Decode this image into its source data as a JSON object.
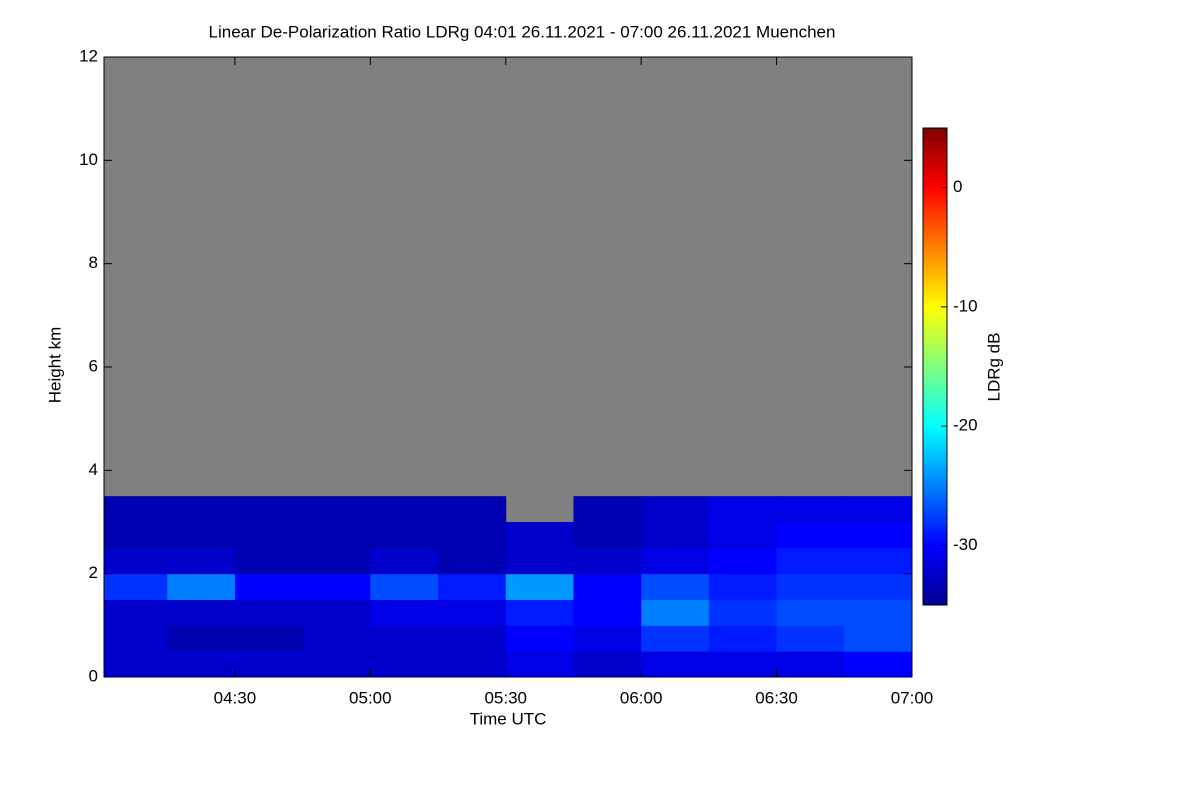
{
  "chart_data": {
    "type": "heatmap",
    "title": "Linear De-Polarization Ratio LDRg   04:01 26.11.2021 - 07:00 26.11.2021 Muenchen",
    "x_label": "Time UTC",
    "y_label": "Height km",
    "colorbar_label": "LDRg dB",
    "colormap": "jet",
    "missing_color": "#808080",
    "x_bins": [
      4.0167,
      4.25,
      4.5,
      4.75,
      5.0,
      5.25,
      5.5,
      5.75,
      6.0,
      6.25,
      6.5,
      6.75,
      7.0
    ],
    "y_bins": [
      0,
      0.5,
      1,
      1.5,
      2,
      2.5,
      3,
      3.5,
      4
    ],
    "z": [
      [
        -32,
        -32,
        -32,
        -32,
        -32,
        -32,
        -31,
        -32,
        -31,
        -31,
        -31,
        -30
      ],
      [
        -32,
        -33,
        -33,
        -32,
        -32,
        -32,
        -30,
        -31,
        -28,
        -29,
        -28,
        -27
      ],
      [
        -32,
        -32,
        -32,
        -32,
        -31,
        -31,
        -29,
        -30,
        -25,
        -28,
        -27,
        -27
      ],
      [
        -28,
        -25,
        -30,
        -30,
        -27,
        -29,
        -24,
        -30,
        -27,
        -29,
        -28,
        -28
      ],
      [
        -32,
        -32,
        -33,
        -33,
        -32,
        -33,
        -32,
        -32,
        -31,
        -30,
        -29,
        -29
      ],
      [
        -33,
        -33,
        -33,
        -33,
        -33,
        -33,
        -32,
        -33,
        -32,
        -31,
        -30,
        -30
      ],
      [
        -33,
        -33,
        -33,
        -33,
        -33,
        -33,
        null,
        -33,
        -32,
        -31,
        -31,
        -31
      ],
      [
        null,
        null,
        null,
        null,
        null,
        null,
        null,
        null,
        null,
        null,
        null,
        null
      ]
    ],
    "xlim": [
      4.0167,
      7.0
    ],
    "xticks": [
      {
        "value": 4.5,
        "label": "04:30"
      },
      {
        "value": 5.0,
        "label": "05:00"
      },
      {
        "value": 5.5,
        "label": "05:30"
      },
      {
        "value": 6.0,
        "label": "06:00"
      },
      {
        "value": 6.5,
        "label": "06:30"
      },
      {
        "value": 7.0,
        "label": "07:00"
      }
    ],
    "ylim": [
      0,
      12
    ],
    "yticks": [
      0,
      2,
      4,
      6,
      8,
      10,
      12
    ],
    "zlim": [
      -35,
      5
    ],
    "zticks": [
      -30,
      -20,
      -10,
      0
    ]
  }
}
